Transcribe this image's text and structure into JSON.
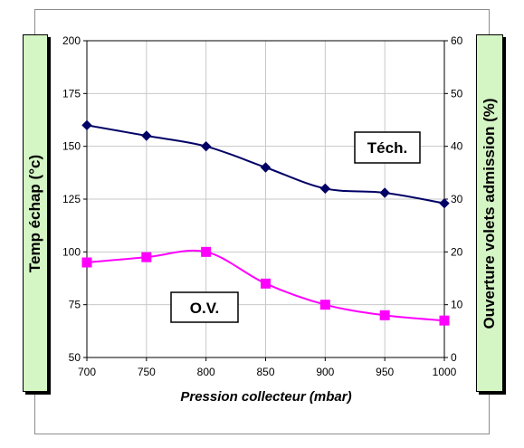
{
  "chart_data": {
    "type": "line",
    "xlabel": "Pression collecteur (mbar)",
    "ylabel_left": "Temp échap (°c)",
    "ylabel_right": "Ouverture volets admission (%)",
    "x_ticks": [
      "700",
      "750",
      "800",
      "850",
      "900",
      "950",
      "1000"
    ],
    "y_left_ticks": [
      "50",
      "75",
      "100",
      "125",
      "150",
      "175",
      "200"
    ],
    "y_right_ticks": [
      "0",
      "10",
      "20",
      "30",
      "40",
      "50",
      "60"
    ],
    "xlim": [
      700,
      1000
    ],
    "ylim_left": [
      50,
      200
    ],
    "ylim_right": [
      0,
      60
    ],
    "grid": true,
    "series": [
      {
        "name": "Téch.",
        "axis": "left",
        "color": "#000066",
        "marker": "diamond",
        "x": [
          700,
          750,
          800,
          850,
          900,
          950,
          1000
        ],
        "y": [
          160,
          155,
          150,
          140,
          130,
          128,
          123
        ]
      },
      {
        "name": "O.V.",
        "axis": "right",
        "color": "#ff00ff",
        "marker": "square",
        "x": [
          700,
          750,
          800,
          850,
          900,
          950,
          1000
        ],
        "y": [
          18,
          19,
          20,
          14,
          10,
          8,
          7
        ]
      }
    ]
  }
}
